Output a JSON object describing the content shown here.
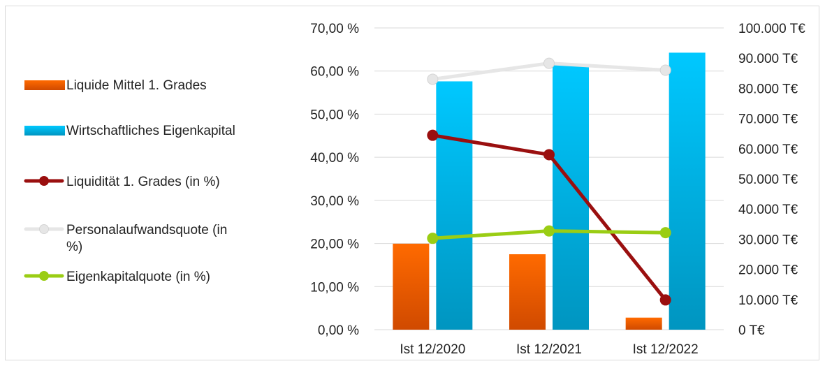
{
  "chart_data": {
    "type": "bar",
    "categories": [
      "Ist 12/2020",
      "Ist 12/2021",
      "Ist 12/2022"
    ],
    "left_axis": {
      "ticks": [
        "0,00 %",
        "10,00 %",
        "20,00 %",
        "30,00 %",
        "40,00 %",
        "50,00 %",
        "60,00 %",
        "70,00 %"
      ],
      "range": [
        0,
        70
      ]
    },
    "right_axis": {
      "ticks": [
        "0 T€",
        "10.000 T€",
        "20.000 T€",
        "30.000 T€",
        "40.000 T€",
        "50.000 T€",
        "60.000 T€",
        "70.000 T€",
        "80.000 T€",
        "90.000 T€",
        "100.000 T€"
      ],
      "range": [
        0,
        100000
      ]
    },
    "grid": true,
    "legend_position": "left",
    "bar_series": [
      {
        "name": "Liquide Mittel 1. Grades",
        "axis": "right",
        "values": [
          28500,
          25000,
          4000
        ],
        "color": "#ff6600"
      },
      {
        "name": "Wirtschaftliches Eigenkapital",
        "axis": "right",
        "values": [
          82300,
          87800,
          91800
        ],
        "color": "#00c0f0"
      }
    ],
    "line_series": [
      {
        "name": "Liquidität 1. Grades (in %)",
        "axis": "left",
        "values": [
          45.1,
          40.6,
          6.9
        ],
        "color": "#9a0f0f"
      },
      {
        "name": "Personalaufwandsquote (in %)",
        "legend_lines": [
          "Personalaufwandsquote (in",
          "%)"
        ],
        "axis": "left",
        "values": [
          58.1,
          61.8,
          60.2
        ],
        "color": "#e6e6e6"
      },
      {
        "name": "Eigenkapitalquote (in %)",
        "axis": "left",
        "values": [
          21.2,
          22.9,
          22.5
        ],
        "color": "#9acd14"
      }
    ]
  }
}
